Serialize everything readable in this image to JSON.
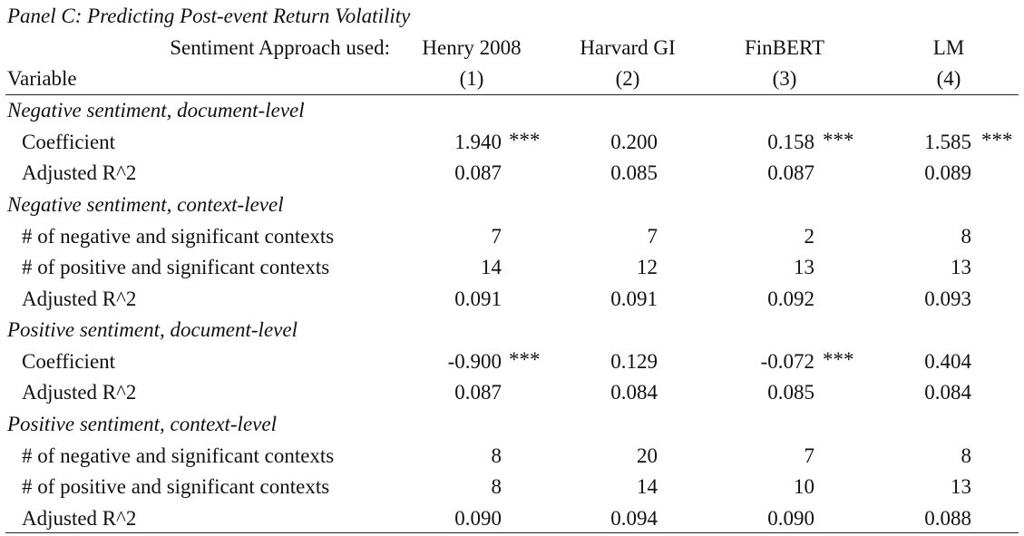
{
  "panel_title": "Panel C: Predicting Post-event Return Volatility",
  "header": {
    "approach_label": "Sentiment Approach used:",
    "variable_label": "Variable",
    "columns": [
      {
        "name": "Henry 2008",
        "number": "(1)"
      },
      {
        "name": "Harvard GI",
        "number": "(2)"
      },
      {
        "name": "FinBERT",
        "number": "(3)"
      },
      {
        "name": "LM",
        "number": "(4)"
      }
    ]
  },
  "sections": [
    {
      "title": "Negative sentiment, document-level",
      "rows": [
        {
          "label": "Coefficient",
          "values": [
            "1.940",
            "0.200",
            "0.158",
            "1.585"
          ],
          "stars": [
            "***",
            "",
            "***",
            "***"
          ]
        },
        {
          "label": "Adjusted R^2",
          "values": [
            "0.087",
            "0.085",
            "0.087",
            "0.089"
          ],
          "stars": [
            "",
            "",
            "",
            ""
          ]
        }
      ]
    },
    {
      "title": "Negative sentiment, context-level",
      "rows": [
        {
          "label": "# of negative and significant contexts",
          "values": [
            "7",
            "7",
            "2",
            "8"
          ],
          "stars": [
            "",
            "",
            "",
            ""
          ]
        },
        {
          "label": "# of positive and significant contexts",
          "values": [
            "14",
            "12",
            "13",
            "13"
          ],
          "stars": [
            "",
            "",
            "",
            ""
          ]
        },
        {
          "label": "Adjusted R^2",
          "values": [
            "0.091",
            "0.091",
            "0.092",
            "0.093"
          ],
          "stars": [
            "",
            "",
            "",
            ""
          ]
        }
      ]
    },
    {
      "title": "Positive sentiment, document-level",
      "rows": [
        {
          "label": "Coefficient",
          "values": [
            "-0.900",
            "0.129",
            "-0.072",
            "0.404"
          ],
          "stars": [
            "***",
            "",
            "***",
            ""
          ]
        },
        {
          "label": "Adjusted R^2",
          "values": [
            "0.087",
            "0.084",
            "0.085",
            "0.084"
          ],
          "stars": [
            "",
            "",
            "",
            ""
          ]
        }
      ]
    },
    {
      "title": "Positive sentiment, context-level",
      "rows": [
        {
          "label": "# of negative and significant contexts",
          "values": [
            "8",
            "20",
            "7",
            "8"
          ],
          "stars": [
            "",
            "",
            "",
            ""
          ]
        },
        {
          "label": "# of positive and significant contexts",
          "values": [
            "8",
            "14",
            "10",
            "13"
          ],
          "stars": [
            "",
            "",
            "",
            ""
          ]
        },
        {
          "label": "Adjusted R^2",
          "values": [
            "0.090",
            "0.094",
            "0.090",
            "0.088"
          ],
          "stars": [
            "",
            "",
            "",
            ""
          ]
        }
      ]
    }
  ]
}
